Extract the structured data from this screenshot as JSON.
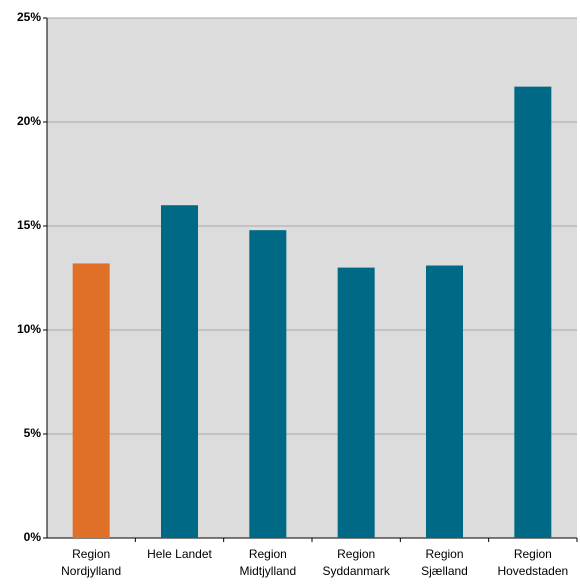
{
  "chart_data": {
    "type": "bar",
    "categories": [
      "Region Nordjylland",
      "Hele Landet",
      "Region Midtjylland",
      "Region Syddanmark",
      "Region Sjælland",
      "Region Hovedstaden"
    ],
    "values": [
      13.2,
      16.0,
      14.8,
      13.0,
      13.1,
      21.7
    ],
    "colors": [
      "#e07028",
      "#006a86",
      "#006a86",
      "#006a86",
      "#006a86",
      "#006a86"
    ],
    "ylim": [
      0,
      25
    ],
    "yticks": [
      {
        "value": 0,
        "label": "0%"
      },
      {
        "value": 5,
        "label": "5%"
      },
      {
        "value": 10,
        "label": "10%"
      },
      {
        "value": 15,
        "label": "15%"
      },
      {
        "value": 20,
        "label": "20%"
      },
      {
        "value": 25,
        "label": "25%"
      }
    ],
    "grid": true
  }
}
